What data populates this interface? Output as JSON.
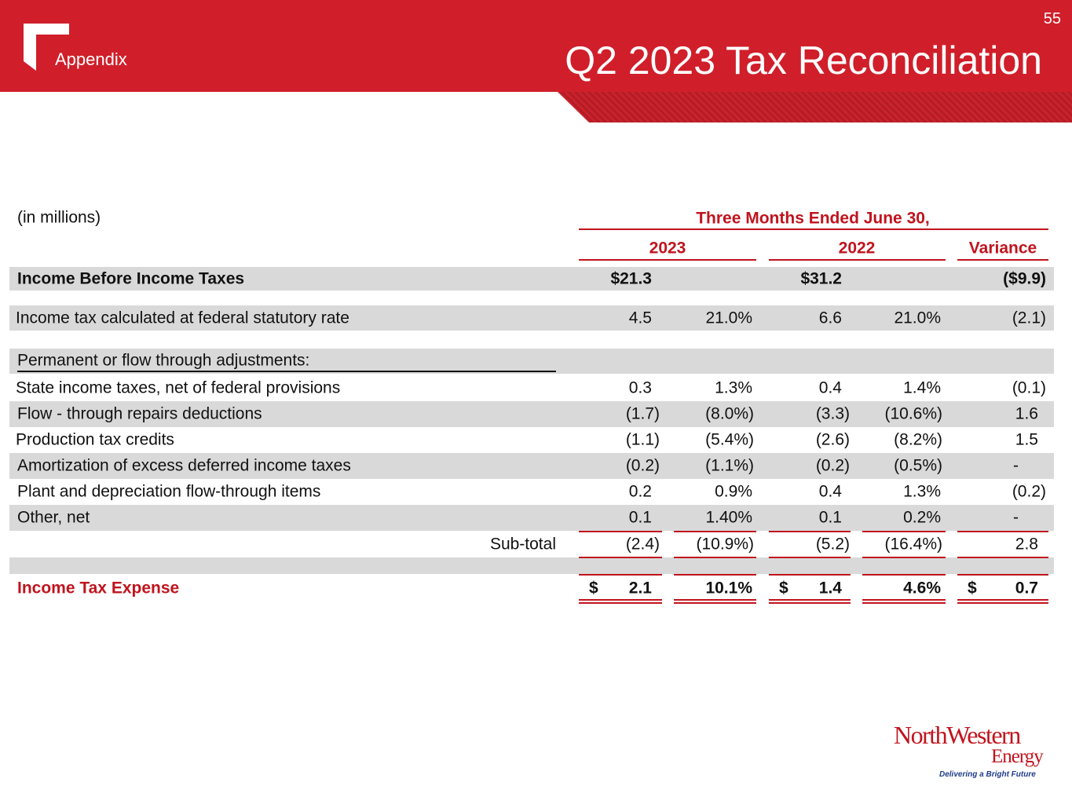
{
  "header": {
    "page_number": "55",
    "section": "Appendix",
    "title": "Q2 2023 Tax Reconciliation"
  },
  "table": {
    "units": "(in millions)",
    "group_header": "Three Months Ended June 30,",
    "column_headers": [
      "2023",
      "2022",
      "Variance"
    ],
    "currency_symbol": "$",
    "rows": [
      {
        "label": "Income Before Income Taxes",
        "amount_2023": "$21.3",
        "amount_2022": "$31.2",
        "variance": "($9.9)"
      },
      {
        "label": "Income tax calculated at federal statutory rate",
        "amount_2023": "4.5",
        "pct_2023": "21.0%",
        "amount_2022": "6.6",
        "pct_2022": "21.0%",
        "variance": "(2.1)"
      },
      {
        "label": "Permanent or flow through adjustments:"
      },
      {
        "label": "State income taxes, net of federal provisions",
        "amount_2023": "0.3",
        "pct_2023": "1.3%",
        "amount_2022": "0.4",
        "pct_2022": "1.4%",
        "variance": "(0.1)"
      },
      {
        "label": "Flow - through repairs deductions",
        "amount_2023": "(1.7)",
        "pct_2023": "(8.0%)",
        "amount_2022": "(3.3)",
        "pct_2022": "(10.6%)",
        "variance": "1.6"
      },
      {
        "label": "Production tax credits",
        "amount_2023": "(1.1)",
        "pct_2023": "(5.4%)",
        "amount_2022": "(2.6)",
        "pct_2022": "(8.2%)",
        "variance": "1.5"
      },
      {
        "label": "Amortization of excess deferred income taxes",
        "amount_2023": "(0.2)",
        "pct_2023": "(1.1%)",
        "amount_2022": "(0.2)",
        "pct_2022": "(0.5%)",
        "variance": "-"
      },
      {
        "label": "Plant and depreciation flow-through items",
        "amount_2023": "0.2",
        "pct_2023": "0.9%",
        "amount_2022": "0.4",
        "pct_2022": "1.3%",
        "variance": "(0.2)"
      },
      {
        "label": "Other, net",
        "amount_2023": "0.1",
        "pct_2023": "1.40%",
        "amount_2022": "0.1",
        "pct_2022": "0.2%",
        "variance": "-"
      },
      {
        "label": "Sub-total",
        "amount_2023": "(2.4)",
        "pct_2023": "(10.9%)",
        "amount_2022": "(5.2)",
        "pct_2022": "(16.4%)",
        "variance": "2.8"
      },
      {
        "label": "Income Tax Expense",
        "amount_2023": "2.1",
        "pct_2023": "10.1%",
        "amount_2022": "1.4",
        "pct_2022": "4.6%",
        "variance": "0.7"
      }
    ]
  },
  "logo": {
    "name": "NorthWestern",
    "sub": "Energy",
    "tagline": "Delivering a Bright Future"
  }
}
